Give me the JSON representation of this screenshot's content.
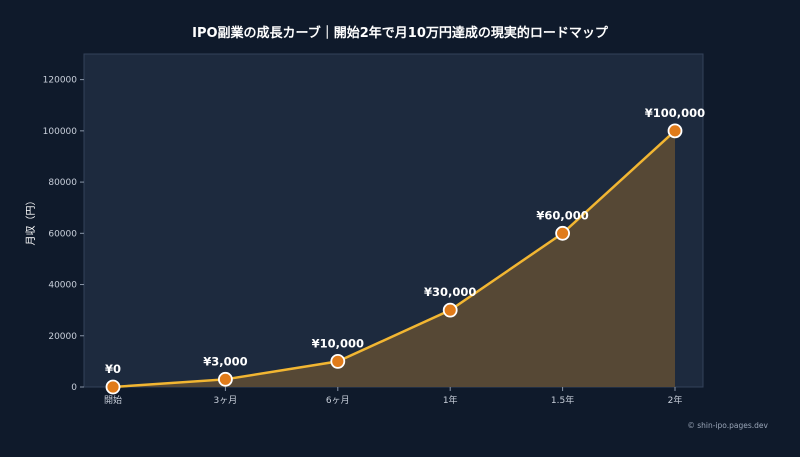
{
  "chart_data": {
    "type": "area",
    "title": "IPO副業の成長カーブ｜開始2年で月10万円達成の現実的ロードマップ",
    "xlabel": "",
    "ylabel": "月収（円）",
    "categories": [
      "開始",
      "3ヶ月",
      "6ヶ月",
      "1年",
      "1.5年",
      "2年"
    ],
    "series": [
      {
        "values": [
          0,
          3000,
          10000,
          30000,
          60000,
          100000
        ],
        "data_labels": [
          "¥0",
          "¥3,000",
          "¥10,000",
          "¥30,000",
          "¥60,000",
          "¥100,000"
        ]
      }
    ],
    "ylim": [
      0,
      130000
    ],
    "yticks": [
      0,
      20000,
      40000,
      60000,
      80000,
      100000,
      120000
    ],
    "ytick_labels": [
      "0",
      "20000",
      "40000",
      "60000",
      "80000",
      "100000",
      "120000"
    ],
    "grid": false,
    "legend": "none",
    "colors": {
      "background": "#0f1a2b",
      "plot_background": "#1d2a3e",
      "line": "#f2b632",
      "fill": "#5a4a35",
      "marker": "#e07b1a",
      "marker_edge": "#ffffff"
    }
  },
  "credit": "© shin-ipo.pages.dev"
}
